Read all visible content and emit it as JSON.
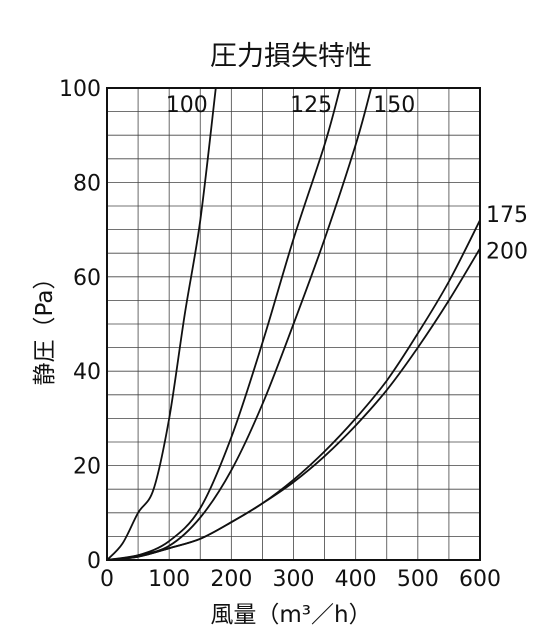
{
  "chart_data": {
    "type": "line",
    "title": "圧力損失特性",
    "xlabel": "風量（m³／h）",
    "ylabel": "静圧（Pa）",
    "xlim": [
      0,
      600
    ],
    "ylim": [
      0,
      100
    ],
    "xticks": [
      0,
      100,
      200,
      300,
      400,
      500,
      600
    ],
    "yticks": [
      0,
      20,
      40,
      60,
      80,
      100
    ],
    "grid": true,
    "series": [
      {
        "name": "100",
        "x": [
          0,
          25,
          50,
          75,
          100,
          125,
          150,
          175
        ],
        "y": [
          0,
          3.5,
          10,
          15,
          30,
          52,
          72,
          100
        ]
      },
      {
        "name": "125",
        "x": [
          0,
          50,
          100,
          150,
          200,
          250,
          300,
          350,
          375
        ],
        "y": [
          0,
          1,
          4,
          11,
          26,
          46,
          68,
          88,
          100
        ]
      },
      {
        "name": "150",
        "x": [
          0,
          50,
          100,
          150,
          200,
          250,
          300,
          350,
          400,
          425
        ],
        "y": [
          0,
          1,
          3,
          9,
          19,
          33,
          50,
          68,
          88,
          100
        ]
      },
      {
        "name": "175",
        "x": [
          0,
          50,
          100,
          150,
          200,
          250,
          300,
          350,
          400,
          450,
          500,
          550,
          600
        ],
        "y": [
          0,
          0.7,
          2.5,
          4.5,
          8,
          12,
          17,
          23,
          30,
          38,
          48,
          59,
          72
        ]
      },
      {
        "name": "200",
        "x": [
          0,
          50,
          100,
          150,
          200,
          250,
          300,
          350,
          400,
          450,
          500,
          550,
          600
        ],
        "y": [
          0,
          0.7,
          2.5,
          4.5,
          8,
          12,
          16.5,
          22,
          28.5,
          36,
          45,
          55,
          66
        ]
      }
    ]
  }
}
